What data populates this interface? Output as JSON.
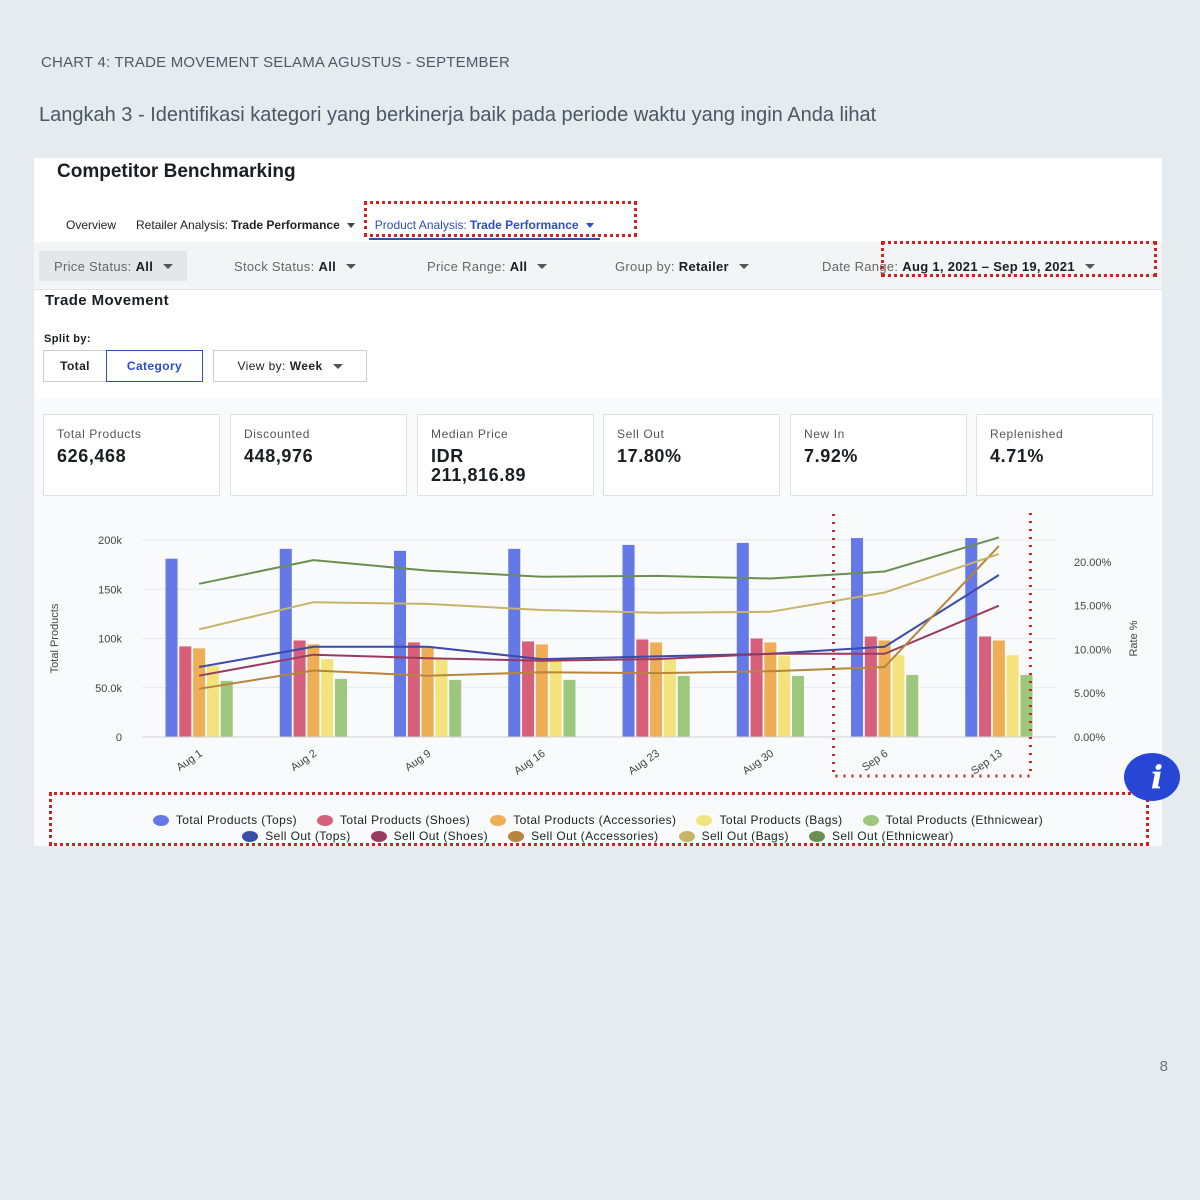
{
  "slide": {
    "caption": "CHART 4: TRADE MOVEMENT SELAMA  AGUSTUS -  SEPTEMBER",
    "step": "Langkah 3 - Identifikasi kategori yang berkinerja baik pada periode waktu yang ingin Anda lihat",
    "page_number": "8"
  },
  "app": {
    "title": "Competitor Benchmarking",
    "tabs": [
      {
        "label": "Overview",
        "bold": ""
      },
      {
        "label": "Retailer Analysis:",
        "bold": "Trade Performance"
      },
      {
        "label": "Product Analysis:",
        "bold": "Trade Performance"
      }
    ],
    "filters": [
      {
        "label": "Price Status:",
        "value": "All"
      },
      {
        "label": "Stock Status:",
        "value": "All"
      },
      {
        "label": "Price Range:",
        "value": "All"
      },
      {
        "label": "Group by:",
        "value": "Retailer"
      },
      {
        "label": "Date Range:",
        "value": "Aug 1, 2021 – Sep 19, 2021"
      }
    ]
  },
  "trade_movement": {
    "title": "Trade Movement",
    "split_label": "Split by:",
    "split_options": [
      "Total",
      "Category"
    ],
    "view_by_label": "View by:",
    "view_by_value": "Week"
  },
  "kpis": [
    {
      "label": "Total Products",
      "value": "626,468"
    },
    {
      "label": "Discounted",
      "value": "448,976"
    },
    {
      "label": "Median Price",
      "value": "IDR",
      "value2": "211,816.89"
    },
    {
      "label": "Sell Out",
      "value": "17.80%"
    },
    {
      "label": "New In",
      "value": "7.92%"
    },
    {
      "label": "Replenished",
      "value": "4.71%"
    }
  ],
  "colors": {
    "tops": "#6578e8",
    "shoes": "#d85f7a",
    "accessories": "#eeae55",
    "bags": "#f4e27c",
    "ethnicwear": "#9dc77c",
    "so_tops": "#3b4ba8",
    "so_shoes": "#9a3a5e",
    "so_accessories": "#b7853c",
    "so_bags": "#c6b469",
    "so_ethnicwear": "#6b8f50"
  },
  "chart_data": {
    "type": "bar",
    "categories": [
      "Aug 1",
      "Aug 2",
      "Aug 9",
      "Aug 16",
      "Aug 23",
      "Aug 30",
      "Sep 6",
      "Sep 13"
    ],
    "ylabel": "Total Products",
    "y2label": "Rate %",
    "ylim": [
      0,
      200000
    ],
    "y2lim": [
      0,
      22.5
    ],
    "yticks": [
      "0",
      "50.0k",
      "100k",
      "150k",
      "200k"
    ],
    "y2ticks": [
      "0.00%",
      "5.00%",
      "10.00%",
      "15.00%",
      "20.00%"
    ],
    "series": [
      {
        "name": "Total Products (Tops)",
        "type": "bar",
        "color": "tops",
        "values": [
          181000,
          191000,
          189000,
          191000,
          195000,
          197000,
          202000,
          202000
        ]
      },
      {
        "name": "Total Products (Shoes)",
        "type": "bar",
        "color": "shoes",
        "values": [
          92000,
          98000,
          96000,
          97000,
          99000,
          100000,
          102000,
          102000
        ]
      },
      {
        "name": "Total Products (Accessories)",
        "type": "bar",
        "color": "accessories",
        "values": [
          90000,
          94000,
          92000,
          94000,
          96000,
          96000,
          98000,
          98000
        ]
      },
      {
        "name": "Total Products (Bags)",
        "type": "bar",
        "color": "bags",
        "values": [
          72000,
          79000,
          79000,
          79000,
          80000,
          82000,
          83000,
          83000
        ]
      },
      {
        "name": "Total Products (Ethnicwear)",
        "type": "bar",
        "color": "ethnicwear",
        "values": [
          57000,
          59000,
          58000,
          58000,
          62000,
          62000,
          63000,
          63000
        ]
      },
      {
        "name": "Sell Out (Tops)",
        "type": "line",
        "color": "so_tops",
        "values": [
          8.0,
          10.3,
          10.3,
          8.9,
          9.2,
          9.5,
          10.3,
          18.5
        ]
      },
      {
        "name": "Sell Out (Shoes)",
        "type": "line",
        "color": "so_shoes",
        "values": [
          7.0,
          9.4,
          9.0,
          8.7,
          8.9,
          9.5,
          9.5,
          15.0
        ]
      },
      {
        "name": "Sell Out (Accessories)",
        "type": "line",
        "color": "so_accessories",
        "values": [
          5.5,
          7.6,
          7.0,
          7.4,
          7.3,
          7.5,
          8.0,
          21.8
        ]
      },
      {
        "name": "Sell Out (Bags)",
        "type": "line",
        "color": "so_bags",
        "values": [
          12.3,
          15.4,
          15.2,
          14.5,
          14.2,
          14.3,
          16.5,
          20.9
        ]
      },
      {
        "name": "Sell Out (Ethnicwear)",
        "type": "line",
        "color": "so_ethnicwear",
        "values": [
          17.5,
          20.2,
          19.0,
          18.3,
          18.4,
          18.1,
          18.9,
          22.8
        ]
      }
    ]
  }
}
